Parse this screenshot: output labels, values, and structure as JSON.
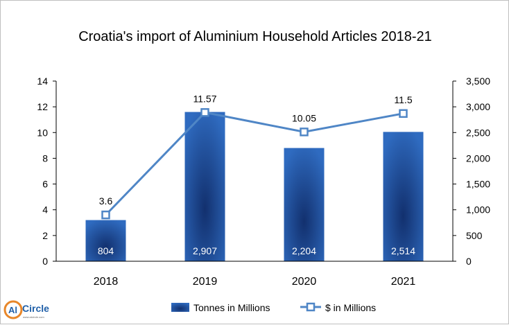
{
  "chart_data": {
    "type": "bar",
    "title": "Croatia's import of Aluminium Household Articles 2018-21",
    "categories": [
      "2018",
      "2019",
      "2020",
      "2021"
    ],
    "series": [
      {
        "name": "Tonnes in Millions",
        "kind": "bar",
        "axis": "left",
        "values": [
          3.2,
          11.6,
          8.8,
          10.05
        ],
        "data_labels": [
          "804",
          "2,907",
          "2,204",
          "2,514"
        ]
      },
      {
        "name": "$ in Millions",
        "kind": "line",
        "axis": "right",
        "values": [
          900,
          2890,
          2512,
          2870
        ],
        "data_labels": [
          "3.6",
          "11.57",
          "10.05",
          "11.5"
        ]
      }
    ],
    "left_axis": {
      "ylim": [
        0,
        14
      ],
      "ticks": [
        "0",
        "2",
        "4",
        "6",
        "8",
        "10",
        "12",
        "14"
      ]
    },
    "right_axis": {
      "ylim": [
        0,
        3500
      ],
      "ticks": [
        "0",
        "500",
        "1,000",
        "1,500",
        "2,000",
        "2,500",
        "3,000",
        "3,500"
      ]
    },
    "grid": false,
    "legend_position": "bottom"
  },
  "colors": {
    "bar_dark": "#12306e",
    "bar_light": "#2f6bc0",
    "line": "#4f86c6",
    "logo_blue": "#1f5fa8",
    "logo_orange": "#e8872a"
  },
  "logo": {
    "text_al": "Al",
    "text_name": "Circle",
    "tagline": "www.alcircle.com"
  }
}
